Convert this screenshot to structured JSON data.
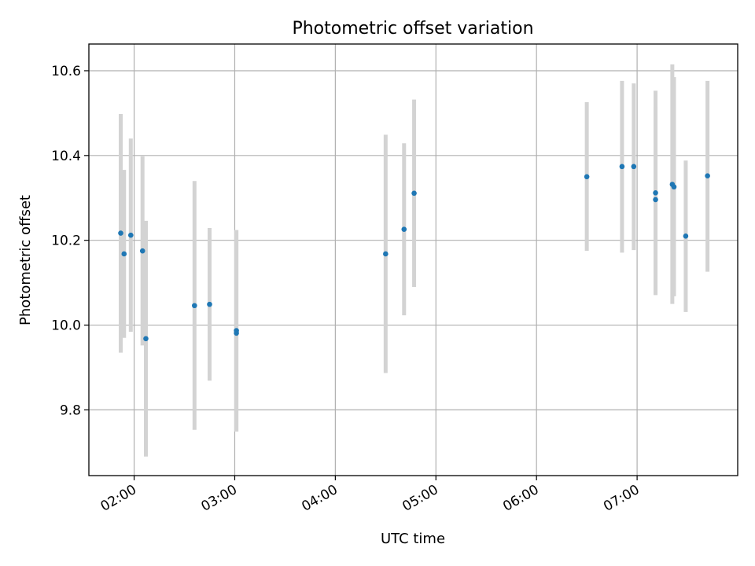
{
  "chart_data": {
    "type": "scatter",
    "title": "Photometric offset variation",
    "xlabel": "UTC time",
    "ylabel": "Photometric offset",
    "xlim": [
      "01:33",
      "08:00"
    ],
    "ylim": [
      9.645,
      10.663
    ],
    "xticks": [
      "02:00",
      "03:00",
      "04:00",
      "05:00",
      "06:00",
      "07:00"
    ],
    "yticks": [
      9.8,
      10.0,
      10.2,
      10.4,
      10.6
    ],
    "ytick_labels": [
      "9.8",
      "10.0",
      "10.2",
      "10.4",
      "10.6"
    ],
    "grid": true,
    "colors": {
      "point": "#1f77b4",
      "errorbar": "#d3d3d3",
      "grid": "#b0b0b0"
    },
    "points": [
      {
        "x": "01:52",
        "y": 10.217,
        "lo": 9.935,
        "hi": 10.498
      },
      {
        "x": "01:54",
        "y": 10.168,
        "lo": 9.97,
        "hi": 10.366
      },
      {
        "x": "01:58",
        "y": 10.212,
        "lo": 9.984,
        "hi": 10.44
      },
      {
        "x": "02:05",
        "y": 10.175,
        "lo": 9.952,
        "hi": 10.398
      },
      {
        "x": "02:07",
        "y": 9.968,
        "lo": 9.69,
        "hi": 10.246
      },
      {
        "x": "02:36",
        "y": 10.046,
        "lo": 9.753,
        "hi": 10.34
      },
      {
        "x": "02:45",
        "y": 10.049,
        "lo": 9.869,
        "hi": 10.229
      },
      {
        "x": "03:01",
        "y": 9.981,
        "lo": 9.749,
        "hi": 10.224
      },
      {
        "x": "03:01",
        "y": 9.987,
        "lo": 9.749,
        "hi": 10.224
      },
      {
        "x": "04:30",
        "y": 10.168,
        "lo": 9.887,
        "hi": 10.449
      },
      {
        "x": "04:41",
        "y": 10.226,
        "lo": 10.023,
        "hi": 10.429
      },
      {
        "x": "04:47",
        "y": 10.311,
        "lo": 10.09,
        "hi": 10.532
      },
      {
        "x": "06:30",
        "y": 10.35,
        "lo": 10.175,
        "hi": 10.526
      },
      {
        "x": "06:51",
        "y": 10.374,
        "lo": 10.171,
        "hi": 10.576
      },
      {
        "x": "06:58",
        "y": 10.374,
        "lo": 10.177,
        "hi": 10.57
      },
      {
        "x": "07:11",
        "y": 10.312,
        "lo": 10.071,
        "hi": 10.553
      },
      {
        "x": "07:11",
        "y": 10.296,
        "lo": 10.071,
        "hi": 10.515
      },
      {
        "x": "07:21",
        "y": 10.332,
        "lo": 10.05,
        "hi": 10.615
      },
      {
        "x": "07:22",
        "y": 10.326,
        "lo": 10.068,
        "hi": 10.585
      },
      {
        "x": "07:29",
        "y": 10.21,
        "lo": 10.031,
        "hi": 10.388
      },
      {
        "x": "07:42",
        "y": 10.352,
        "lo": 10.126,
        "hi": 10.576
      }
    ]
  }
}
